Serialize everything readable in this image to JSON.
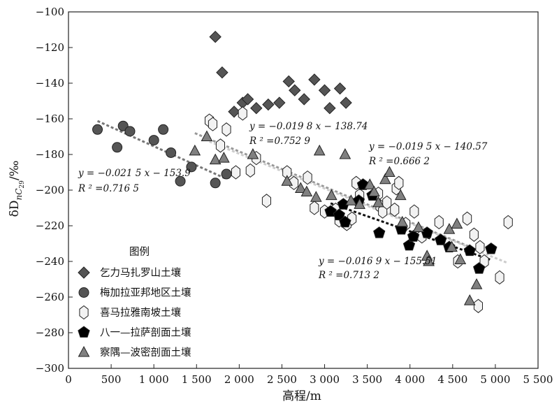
{
  "chart_data": {
    "type": "scatter",
    "xlabel": "高程/m",
    "ylabel": "δD_nC29/‰",
    "ylabel_main": "δD",
    "ylabel_sub": "nC",
    "ylabel_subsub": "29",
    "ylabel_unit": "/‰",
    "xlim": [
      0,
      5500
    ],
    "ylim": [
      -300,
      -100
    ],
    "xticks": [
      0,
      500,
      1000,
      1500,
      2000,
      2500,
      3000,
      3500,
      4000,
      4500,
      5000,
      5500
    ],
    "xtick_labels": [
      "0",
      "500",
      "1 000",
      "1 500",
      "2 000",
      "2 500",
      "3 000",
      "3 500",
      "4 000",
      "4 500",
      "5 000",
      "5 500"
    ],
    "yticks": [
      -300,
      -280,
      -260,
      -240,
      -220,
      -200,
      -180,
      -160,
      -140,
      -120,
      -100
    ],
    "ytick_labels": [
      "−300",
      "−280",
      "−260",
      "−240",
      "−220",
      "−200",
      "−180",
      "−160",
      "−140",
      "−120",
      "−100"
    ],
    "grid": false,
    "legend_title": "图例",
    "legend_position": "bottom-left",
    "series": [
      {
        "name": "乞力马扎罗山土壤",
        "marker": "diamond",
        "color": "#555555",
        "points": [
          [
            1720,
            -114
          ],
          [
            1800,
            -134
          ],
          [
            1940,
            -156
          ],
          [
            2040,
            -151
          ],
          [
            2100,
            -149
          ],
          [
            2200,
            -154
          ],
          [
            2340,
            -152
          ],
          [
            2470,
            -151
          ],
          [
            2580,
            -139
          ],
          [
            2650,
            -144
          ],
          [
            2760,
            -149
          ],
          [
            2880,
            -138
          ],
          [
            3000,
            -144
          ],
          [
            3060,
            -154
          ],
          [
            3180,
            -143
          ],
          [
            3250,
            -151
          ]
        ]
      },
      {
        "name": "梅加拉亚邦地区土壤",
        "marker": "circle",
        "color": "#555555",
        "points": [
          [
            340,
            -166
          ],
          [
            570,
            -176
          ],
          [
            640,
            -164
          ],
          [
            720,
            -167
          ],
          [
            1000,
            -172
          ],
          [
            1110,
            -166
          ],
          [
            1200,
            -179
          ],
          [
            1310,
            -195
          ],
          [
            1440,
            -187
          ],
          [
            1720,
            -196
          ],
          [
            1850,
            -191
          ]
        ]
      },
      {
        "name": "喜马拉雅南坡土壤",
        "marker": "hexagon",
        "color": "#f2f2f2",
        "points": [
          [
            1650,
            -161
          ],
          [
            1690,
            -163
          ],
          [
            1780,
            -175
          ],
          [
            1850,
            -166
          ],
          [
            1960,
            -190
          ],
          [
            2040,
            -157
          ],
          [
            2130,
            -189
          ],
          [
            2200,
            -182
          ],
          [
            2320,
            -206
          ],
          [
            2560,
            -190
          ],
          [
            2640,
            -196
          ],
          [
            2800,
            -193
          ],
          [
            2880,
            -210
          ],
          [
            3000,
            -212
          ],
          [
            3130,
            -211
          ],
          [
            3170,
            -217
          ],
          [
            3260,
            -219
          ],
          [
            3320,
            -216
          ],
          [
            3370,
            -196
          ],
          [
            3410,
            -203
          ],
          [
            3630,
            -202
          ],
          [
            3650,
            -209
          ],
          [
            3680,
            -212
          ],
          [
            3730,
            -207
          ],
          [
            3820,
            -211
          ],
          [
            3840,
            -199
          ],
          [
            3870,
            -196
          ],
          [
            3950,
            -219
          ],
          [
            4050,
            -212
          ],
          [
            4140,
            -226
          ],
          [
            4340,
            -218
          ],
          [
            4560,
            -240
          ],
          [
            4670,
            -216
          ],
          [
            4750,
            -225
          ],
          [
            4800,
            -265
          ],
          [
            4820,
            -232
          ],
          [
            4870,
            -240
          ],
          [
            5050,
            -249
          ],
          [
            5150,
            -218
          ]
        ]
      },
      {
        "name": "八一—拉萨剖面土壤",
        "marker": "pentagon",
        "color": "#000000",
        "points": [
          [
            3070,
            -212
          ],
          [
            3170,
            -214
          ],
          [
            3220,
            -208
          ],
          [
            3240,
            -218
          ],
          [
            3400,
            -206
          ],
          [
            3450,
            -197
          ],
          [
            3560,
            -203
          ],
          [
            3640,
            -224
          ],
          [
            3900,
            -222
          ],
          [
            3990,
            -231
          ],
          [
            4040,
            -226
          ],
          [
            4200,
            -224
          ],
          [
            4360,
            -228
          ],
          [
            4460,
            -232
          ],
          [
            4700,
            -234
          ],
          [
            4810,
            -244
          ],
          [
            4950,
            -233
          ]
        ]
      },
      {
        "name": "察隅—波密剖面土壤",
        "marker": "triangle",
        "color": "#808080",
        "points": [
          [
            1480,
            -178
          ],
          [
            1620,
            -170
          ],
          [
            1720,
            -183
          ],
          [
            1820,
            -182
          ],
          [
            2160,
            -180
          ],
          [
            2560,
            -195
          ],
          [
            2720,
            -199
          ],
          [
            2790,
            -201
          ],
          [
            2900,
            -204
          ],
          [
            2940,
            -178
          ],
          [
            3080,
            -203
          ],
          [
            3240,
            -180
          ],
          [
            3310,
            -206
          ],
          [
            3410,
            -208
          ],
          [
            3530,
            -197
          ],
          [
            3580,
            -201
          ],
          [
            3630,
            -207
          ],
          [
            3710,
            -194
          ],
          [
            3760,
            -190
          ],
          [
            3890,
            -203
          ],
          [
            3910,
            -218
          ],
          [
            4100,
            -221
          ],
          [
            4200,
            -237
          ],
          [
            4220,
            -240
          ],
          [
            4460,
            -222
          ],
          [
            4490,
            -232
          ],
          [
            4550,
            -219
          ],
          [
            4590,
            -239
          ],
          [
            4700,
            -262
          ],
          [
            4780,
            -253
          ]
        ]
      }
    ],
    "trendlines": [
      {
        "equation": "y = −0.021 5 x − 153.9",
        "r2": "R ² =0.716 5",
        "slope": -0.0215,
        "intercept": -153.9,
        "x_range": [
          340,
          1850
        ],
        "color": "#777777"
      },
      {
        "equation": "y = −0.019 8 x − 138.74",
        "r2": "R ² =0.752 9",
        "slope": -0.0198,
        "intercept": -138.74,
        "x_range": [
          1480,
          4780
        ],
        "color": "#999999"
      },
      {
        "equation": "y = −0.019 5 x − 140.57",
        "r2": "R ² =0.666 2",
        "slope": -0.0195,
        "intercept": -140.57,
        "x_range": [
          1650,
          5150
        ],
        "color": "#cccccc"
      },
      {
        "equation": "y = −0.016 9 x − 155.51",
        "r2": "R ² =0.713 2",
        "slope": -0.0169,
        "intercept": -155.51,
        "x_range": [
          3070,
          4950
        ],
        "color": "#111111"
      }
    ]
  }
}
